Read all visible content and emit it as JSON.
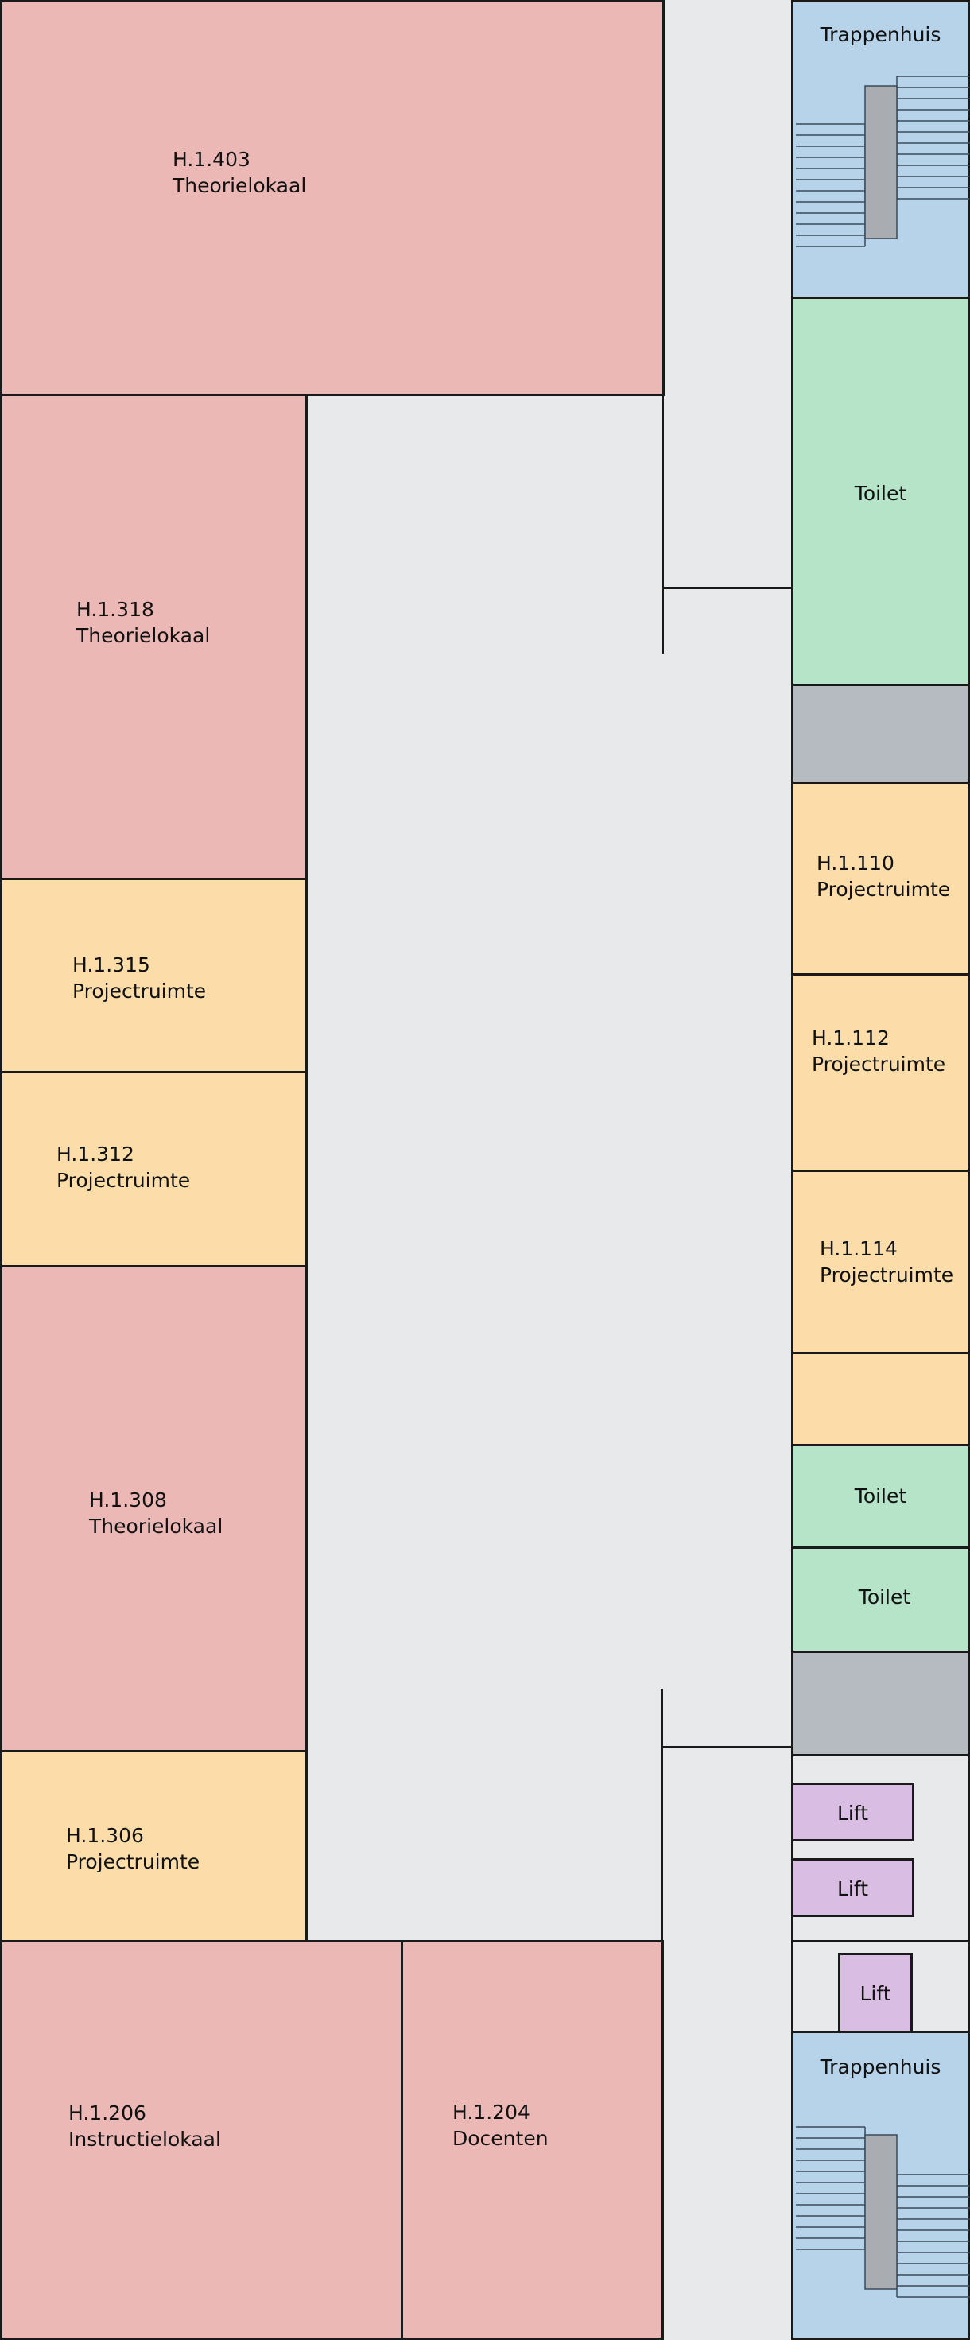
{
  "rooms": {
    "h1403": {
      "code": "H.1.403",
      "type": "Theorielokaal"
    },
    "h1318": {
      "code": "H.1.318",
      "type": "Theorielokaal"
    },
    "h1315": {
      "code": "H.1.315",
      "type": "Projectruimte"
    },
    "h1312": {
      "code": "H.1.312",
      "type": "Projectruimte"
    },
    "h1308": {
      "code": "H.1.308",
      "type": "Theorielokaal"
    },
    "h1306": {
      "code": "H.1.306",
      "type": "Projectruimte"
    },
    "h1206": {
      "code": "H.1.206",
      "type": "Instructielokaal"
    },
    "h1204": {
      "code": "H.1.204",
      "type": "Docenten"
    },
    "h1110": {
      "code": "H.1.110",
      "type": "Projectruimte"
    },
    "h1112": {
      "code": "H.1.112",
      "type": "Projectruimte"
    },
    "h1114": {
      "code": "H.1.114",
      "type": "Projectruimte"
    }
  },
  "facilities": {
    "stairs_top": "Trappenhuis",
    "toilet_large": "Toilet",
    "toilet_1": "Toilet",
    "toilet_2": "Toilet",
    "lift_1": "Lift",
    "lift_2": "Lift",
    "lift_3": "Lift",
    "stairs_bottom": "Trappenhuis"
  },
  "colors": {
    "lecture_room": "#ebb8b5",
    "project_room": "#fcdca8",
    "toilet": "#b5e4c9",
    "stairwell": "#b7d3ea",
    "utility": "#b5bbc1",
    "lift": "#d9bde3",
    "corridor": "#e8e9eb"
  }
}
